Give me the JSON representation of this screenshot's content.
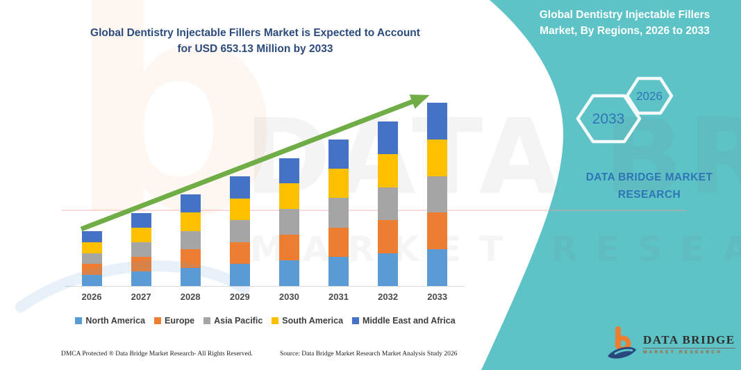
{
  "colors": {
    "teal_panel": "#5EC3C7",
    "title_blue": "#2B4B7C",
    "brand_blue": "#2E75B6",
    "arrow_green": "#70AD47",
    "logo_orange": "#ED7D31",
    "logo_navy": "#27477E",
    "axis_line": "#D9D9D9"
  },
  "left_title": {
    "line1": "Global Dentistry Injectable Fillers Market is Expected to Account",
    "line2": "for USD 653.13 Million by 2033"
  },
  "right_panel": {
    "title_line1": "Global Dentistry Injectable Fillers",
    "title_line2": "Market, By Regions, 2026 to 2033",
    "hex_large_label": "2033",
    "hex_small_label": "2026",
    "brand_line1": "DATA BRIDGE MARKET",
    "brand_line2": "RESEARCH"
  },
  "watermark": {
    "letter": "b",
    "text1": "DATA BRIDGE",
    "text2": "MARKET RESEARCH"
  },
  "logo": {
    "name": "DATA BRIDGE",
    "subtitle": "MARKET RESEARCH"
  },
  "footer": {
    "dmca": "DMCA Protected ® Data Bridge Market Research-  All Rights Reserved.",
    "source": "Source: Data Bridge Market Research  Market Analysis Study 2026"
  },
  "chart_data": {
    "type": "bar",
    "stacked": true,
    "title": "Global Dentistry Injectable Fillers Market is Expected to Account for USD 653.13 Million by 2033",
    "subtitle": "Global Dentistry Injectable Fillers Market, By Regions, 2026 to 2033",
    "unit": "USD Million",
    "categories": [
      "2026",
      "2027",
      "2028",
      "2029",
      "2030",
      "2031",
      "2032",
      "2033"
    ],
    "series": [
      {
        "name": "North America",
        "color": "#5B9BD5",
        "values": [
          39.0,
          52.1,
          65.2,
          78.3,
          91.4,
          104.4,
          117.5,
          130.6
        ]
      },
      {
        "name": "Europe",
        "color": "#ED7D31",
        "values": [
          39.0,
          52.1,
          65.2,
          78.3,
          91.4,
          104.4,
          117.5,
          130.6
        ]
      },
      {
        "name": "Asia Pacific",
        "color": "#A5A5A5",
        "values": [
          39.0,
          52.1,
          65.2,
          78.3,
          91.4,
          104.4,
          117.5,
          130.6
        ]
      },
      {
        "name": "South America",
        "color": "#FFC000",
        "values": [
          39.0,
          52.1,
          65.2,
          78.3,
          91.4,
          104.4,
          117.5,
          130.6
        ]
      },
      {
        "name": "Middle East and Africa",
        "color": "#4472C4",
        "values": [
          39.0,
          52.1,
          65.2,
          78.3,
          91.4,
          104.4,
          117.5,
          130.63
        ]
      }
    ],
    "totals_estimated": [
      195.0,
      260.5,
      326.0,
      391.5,
      457.0,
      522.1,
      587.6,
      653.13
    ],
    "final_value_labeled": 653.13,
    "ylabel": "",
    "xlabel": "",
    "y_axis_visible": false,
    "grid": false,
    "legend_position": "bottom",
    "annotations": [
      "upward green trend arrow from 2026 to 2033"
    ]
  }
}
